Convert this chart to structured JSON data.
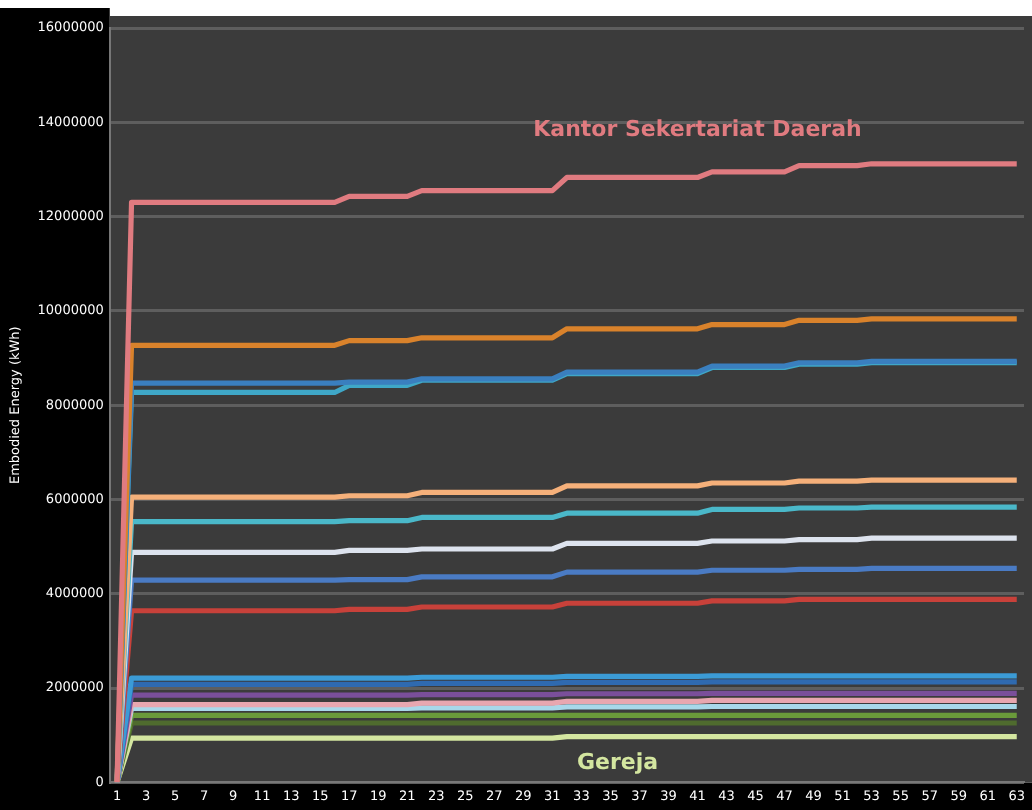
{
  "chart_data": {
    "type": "line",
    "ylabel": "Embodied Energy (kWh)",
    "x": [
      1,
      2,
      16,
      17,
      21,
      22,
      31,
      32,
      41,
      42,
      47,
      48,
      52,
      53,
      63
    ],
    "xlim": [
      0.5,
      63.5
    ],
    "xticks": [
      1,
      3,
      5,
      7,
      9,
      11,
      13,
      15,
      17,
      19,
      21,
      23,
      25,
      27,
      29,
      31,
      33,
      35,
      37,
      39,
      41,
      43,
      45,
      47,
      49,
      51,
      53,
      55,
      57,
      59,
      61,
      63
    ],
    "ylim": [
      0,
      16000000
    ],
    "yticks": [
      0,
      2000000,
      4000000,
      6000000,
      8000000,
      10000000,
      12000000,
      14000000,
      16000000
    ],
    "grid": "y",
    "legend": false,
    "marker": "none",
    "line_style": "solid",
    "series": [
      {
        "name": "Kantor Sekertariat Daerah",
        "color": "#e07b80",
        "values": [
          0,
          12300000,
          12300000,
          12430000,
          12430000,
          12550000,
          12550000,
          12830000,
          12830000,
          12950000,
          12950000,
          13080000,
          13080000,
          13120000,
          13120000
        ]
      },
      {
        "color": "#d9822b",
        "values": [
          0,
          9270000,
          9270000,
          9370000,
          9370000,
          9430000,
          9430000,
          9620000,
          9620000,
          9710000,
          9710000,
          9800000,
          9800000,
          9830000,
          9830000
        ]
      },
      {
        "color": "#3a7fbf",
        "values": [
          0,
          8470000,
          8470000,
          8490000,
          8490000,
          8560000,
          8560000,
          8700000,
          8700000,
          8830000,
          8830000,
          8900000,
          8900000,
          8930000,
          8930000
        ]
      },
      {
        "color": "#3fa7c7",
        "values": [
          0,
          8270000,
          8270000,
          8420000,
          8420000,
          8530000,
          8530000,
          8670000,
          8670000,
          8800000,
          8800000,
          8870000,
          8870000,
          8900000,
          8900000
        ]
      },
      {
        "color": "#f5b07a",
        "values": [
          0,
          6050000,
          6050000,
          6080000,
          6080000,
          6150000,
          6150000,
          6290000,
          6290000,
          6350000,
          6350000,
          6390000,
          6390000,
          6410000,
          6410000
        ]
      },
      {
        "color": "#4ab8c9",
        "values": [
          0,
          5530000,
          5530000,
          5550000,
          5550000,
          5620000,
          5620000,
          5710000,
          5710000,
          5790000,
          5790000,
          5820000,
          5820000,
          5840000,
          5840000
        ]
      },
      {
        "color": "#dde3ee",
        "values": [
          0,
          4880000,
          4880000,
          4920000,
          4920000,
          4950000,
          4950000,
          5070000,
          5070000,
          5120000,
          5120000,
          5150000,
          5150000,
          5180000,
          5180000
        ]
      },
      {
        "color": "#4a7bc4",
        "values": [
          0,
          4290000,
          4290000,
          4300000,
          4300000,
          4360000,
          4360000,
          4460000,
          4460000,
          4500000,
          4500000,
          4520000,
          4520000,
          4540000,
          4540000
        ]
      },
      {
        "color": "#c8413a",
        "values": [
          0,
          3640000,
          3640000,
          3670000,
          3670000,
          3720000,
          3720000,
          3800000,
          3800000,
          3850000,
          3850000,
          3880000,
          3880000,
          3880000,
          3880000
        ]
      },
      {
        "color": "#3b9bd6",
        "values": [
          0,
          2210000,
          2210000,
          2210000,
          2210000,
          2230000,
          2230000,
          2250000,
          2250000,
          2260000,
          2260000,
          2260000,
          2260000,
          2260000,
          2260000
        ]
      },
      {
        "color": "#2f6ab0",
        "values": [
          0,
          2080000,
          2080000,
          2080000,
          2080000,
          2100000,
          2100000,
          2120000,
          2120000,
          2130000,
          2130000,
          2130000,
          2130000,
          2130000,
          2130000
        ]
      },
      {
        "color": "#7a4f9a",
        "values": [
          0,
          1850000,
          1850000,
          1850000,
          1850000,
          1860000,
          1860000,
          1880000,
          1880000,
          1890000,
          1890000,
          1890000,
          1890000,
          1890000,
          1890000
        ]
      },
      {
        "color": "#e8a7b0",
        "values": [
          0,
          1650000,
          1650000,
          1650000,
          1650000,
          1680000,
          1680000,
          1720000,
          1720000,
          1740000,
          1740000,
          1740000,
          1740000,
          1740000,
          1740000
        ]
      },
      {
        "color": "#a8d8ea",
        "values": [
          0,
          1570000,
          1570000,
          1570000,
          1570000,
          1580000,
          1580000,
          1600000,
          1600000,
          1610000,
          1610000,
          1610000,
          1610000,
          1610000,
          1610000
        ]
      },
      {
        "color": "#6a9a3a",
        "values": [
          0,
          1420000,
          1420000,
          1420000,
          1420000,
          1420000,
          1420000,
          1420000,
          1420000,
          1420000,
          1420000,
          1420000,
          1420000,
          1420000,
          1420000
        ]
      },
      {
        "color": "#4f6b2e",
        "values": [
          0,
          1260000,
          1260000,
          1260000,
          1260000,
          1260000,
          1260000,
          1260000,
          1260000,
          1260000,
          1260000,
          1260000,
          1260000,
          1260000,
          1260000
        ]
      },
      {
        "name": "Gereja",
        "color": "#d4e6a0",
        "values": [
          0,
          940000,
          940000,
          940000,
          940000,
          940000,
          940000,
          970000,
          970000,
          970000,
          970000,
          970000,
          970000,
          970000,
          970000
        ]
      }
    ]
  }
}
